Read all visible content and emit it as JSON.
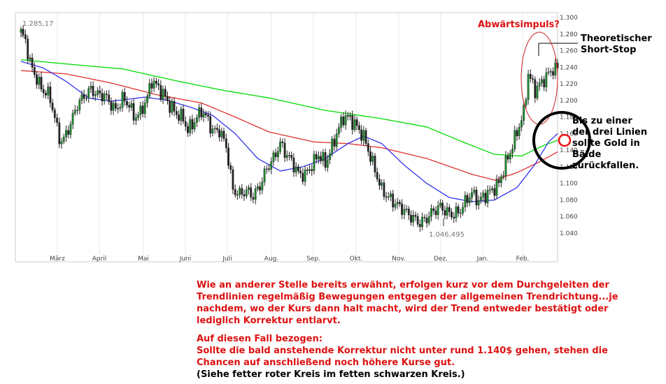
{
  "chart_data": {
    "type": "candlestick",
    "title": "",
    "xlabel": "",
    "ylabel": "",
    "ylim": [
      1.03,
      1.3
    ],
    "yticks": [
      "1.300",
      "1.280",
      "1.260",
      "1.240",
      "1.220",
      "1.200",
      "1.180",
      "1.160",
      "1.140",
      "1.120",
      "1.100",
      "1.080",
      "1.060",
      "1.040"
    ],
    "months": [
      "März",
      "April",
      "Mai",
      "Juni",
      "Juli",
      "Aug.",
      "Sep.",
      "Okt.",
      "Nov.",
      "Dez.",
      "Jan.",
      "Feb."
    ],
    "grid": "vertical",
    "labels": {
      "high": "1.285,17",
      "low": "1.046,495"
    },
    "close_anchors": [
      [
        0,
        1.282
      ],
      [
        2,
        1.272
      ],
      [
        4,
        1.245
      ],
      [
        6,
        1.232
      ],
      [
        9,
        1.214
      ],
      [
        12,
        1.208
      ],
      [
        14,
        1.192
      ],
      [
        17,
        1.153
      ],
      [
        19,
        1.153
      ],
      [
        22,
        1.172
      ],
      [
        25,
        1.195
      ],
      [
        28,
        1.205
      ],
      [
        31,
        1.213
      ],
      [
        34,
        1.207
      ],
      [
        37,
        1.206
      ],
      [
        40,
        1.195
      ],
      [
        42,
        1.188
      ],
      [
        45,
        1.202
      ],
      [
        48,
        1.195
      ],
      [
        50,
        1.18
      ],
      [
        53,
        1.185
      ],
      [
        56,
        1.204
      ],
      [
        58,
        1.224
      ],
      [
        60,
        1.218
      ],
      [
        63,
        1.208
      ],
      [
        66,
        1.194
      ],
      [
        69,
        1.184
      ],
      [
        72,
        1.178
      ],
      [
        74,
        1.164
      ],
      [
        77,
        1.175
      ],
      [
        80,
        1.188
      ],
      [
        83,
        1.176
      ],
      [
        85,
        1.163
      ],
      [
        88,
        1.164
      ],
      [
        91,
        1.145
      ],
      [
        94,
        1.092
      ],
      [
        97,
        1.087
      ],
      [
        100,
        1.091
      ],
      [
        103,
        1.085
      ],
      [
        106,
        1.097
      ],
      [
        109,
        1.118
      ],
      [
        112,
        1.13
      ],
      [
        115,
        1.148
      ],
      [
        117,
        1.138
      ],
      [
        120,
        1.127
      ],
      [
        123,
        1.112
      ],
      [
        126,
        1.11
      ],
      [
        129,
        1.122
      ],
      [
        132,
        1.135
      ],
      [
        135,
        1.124
      ],
      [
        137,
        1.137
      ],
      [
        140,
        1.16
      ],
      [
        143,
        1.18
      ],
      [
        146,
        1.178
      ],
      [
        149,
        1.168
      ],
      [
        152,
        1.156
      ],
      [
        155,
        1.132
      ],
      [
        158,
        1.108
      ],
      [
        160,
        1.092
      ],
      [
        163,
        1.083
      ],
      [
        166,
        1.076
      ],
      [
        169,
        1.07
      ],
      [
        172,
        1.062
      ],
      [
        175,
        1.056
      ],
      [
        177,
        1.052
      ],
      [
        180,
        1.058
      ],
      [
        183,
        1.067
      ],
      [
        186,
        1.072
      ],
      [
        189,
        1.065
      ],
      [
        192,
        1.062
      ],
      [
        195,
        1.068
      ],
      [
        198,
        1.082
      ],
      [
        200,
        1.088
      ],
      [
        203,
        1.079
      ],
      [
        206,
        1.086
      ],
      [
        209,
        1.092
      ],
      [
        212,
        1.1
      ],
      [
        214,
        1.117
      ],
      [
        217,
        1.138
      ],
      [
        220,
        1.162
      ],
      [
        223,
        1.185
      ],
      [
        225,
        1.232
      ],
      [
        228,
        1.212
      ],
      [
        231,
        1.222
      ],
      [
        234,
        1.232
      ],
      [
        236,
        1.238
      ]
    ],
    "series": [
      {
        "name": "",
        "color": "#00dd00",
        "anchors": [
          [
            0,
            1.249
          ],
          [
            20,
            1.244
          ],
          [
            45,
            1.238
          ],
          [
            70,
            1.223
          ],
          [
            90,
            1.212
          ],
          [
            110,
            1.203
          ],
          [
            135,
            1.188
          ],
          [
            160,
            1.178
          ],
          [
            180,
            1.168
          ],
          [
            195,
            1.151
          ],
          [
            210,
            1.135
          ],
          [
            222,
            1.133
          ],
          [
            232,
            1.146
          ],
          [
            238,
            1.152
          ]
        ]
      },
      {
        "name": "",
        "color": "#e03030",
        "anchors": [
          [
            0,
            1.236
          ],
          [
            20,
            1.232
          ],
          [
            40,
            1.221
          ],
          [
            60,
            1.207
          ],
          [
            80,
            1.197
          ],
          [
            95,
            1.18
          ],
          [
            110,
            1.162
          ],
          [
            130,
            1.15
          ],
          [
            145,
            1.148
          ],
          [
            160,
            1.143
          ],
          [
            180,
            1.13
          ],
          [
            200,
            1.111
          ],
          [
            210,
            1.104
          ],
          [
            220,
            1.113
          ],
          [
            230,
            1.126
          ],
          [
            238,
            1.138
          ]
        ]
      },
      {
        "name": "",
        "color": "#3333ee",
        "anchors": [
          [
            0,
            1.247
          ],
          [
            10,
            1.239
          ],
          [
            20,
            1.223
          ],
          [
            30,
            1.203
          ],
          [
            40,
            1.199
          ],
          [
            55,
            1.204
          ],
          [
            65,
            1.2
          ],
          [
            75,
            1.192
          ],
          [
            85,
            1.182
          ],
          [
            95,
            1.16
          ],
          [
            105,
            1.13
          ],
          [
            115,
            1.115
          ],
          [
            125,
            1.12
          ],
          [
            135,
            1.13
          ],
          [
            145,
            1.148
          ],
          [
            152,
            1.157
          ],
          [
            160,
            1.148
          ],
          [
            170,
            1.122
          ],
          [
            180,
            1.1
          ],
          [
            190,
            1.083
          ],
          [
            200,
            1.078
          ],
          [
            210,
            1.08
          ],
          [
            220,
            1.095
          ],
          [
            228,
            1.123
          ],
          [
            234,
            1.15
          ],
          [
            238,
            1.16
          ]
        ]
      }
    ]
  },
  "annotations": {
    "impulse": "Abwärtsimpuls?",
    "stop": [
      "Theoretischer",
      "Short-Stop"
    ],
    "target": [
      "Bis zu einer",
      "der drei Linien",
      "sollte Gold in",
      "Bälde",
      "zurückfallen."
    ]
  },
  "comment": {
    "p1": [
      "Wie an anderer Stelle bereits erwähnt, erfolgen kurz vor dem Durchgeleiten der",
      "Trendlinien regelmäßig Bewegungen entgegen der allgemeinen Trendrichtung...je",
      "nachdem, wo der Kurs dann halt macht, wird der Trend entweder bestätigt oder",
      "lediglich Korrektur entlarvt."
    ],
    "p2": [
      "Auf diesen Fall bezogen:",
      "Sollte die bald anstehende Korrektur nicht unter rund 1.140$ gehen, stehen die",
      "Chancen auf anschließend noch höhere Kurse gut."
    ],
    "p3": "(Siehe fetter roter Kreis im fetten schwarzen Kreis.)"
  },
  "colors": {
    "accent": "#dd1111",
    "text": "#000000",
    "candle": "#222222",
    "candle_up": "#1a8a2a",
    "grid": "#e8e8e8"
  }
}
